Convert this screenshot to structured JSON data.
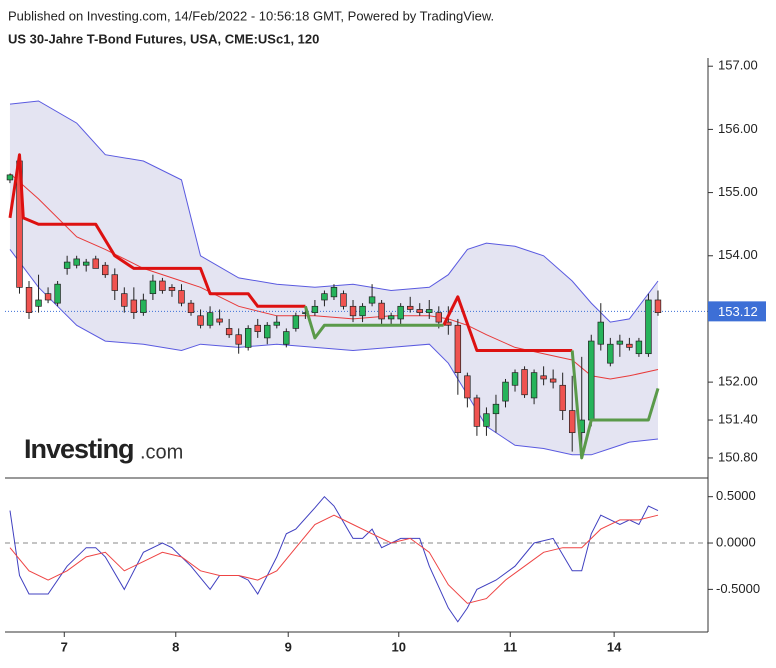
{
  "header": {
    "published": "Published on Investing.com, 14/Feb/2022 - 10:56:18 GMT, Powered by TradingView.",
    "title": "US 30-Jahre T-Bond Futures, USA, CME:USc1, 120"
  },
  "logo": {
    "brand": "Investing",
    "suffix": ".com"
  },
  "chart_data": [
    {
      "type": "candlestick",
      "x": [
        0,
        1,
        2,
        3,
        4,
        5,
        6,
        7,
        8,
        9,
        10,
        11,
        12,
        13,
        14,
        15,
        16,
        17,
        18,
        19,
        20,
        21,
        22,
        23,
        24,
        25,
        26,
        27,
        28,
        29,
        30,
        31,
        32,
        33,
        34,
        35,
        36,
        37,
        38,
        39,
        40,
        41,
        42,
        43,
        44,
        45,
        46,
        47,
        48,
        49,
        50,
        51,
        52,
        53,
        54,
        55,
        56,
        57,
        58,
        59,
        60,
        61,
        62,
        63,
        64,
        65,
        66,
        67,
        68
      ],
      "open": [
        155.2,
        155.5,
        153.5,
        153.2,
        153.4,
        153.25,
        153.8,
        153.85,
        153.85,
        153.95,
        153.85,
        153.7,
        153.4,
        153.3,
        153.1,
        153.4,
        153.6,
        153.5,
        153.45,
        153.25,
        153.05,
        152.9,
        153.0,
        152.85,
        152.75,
        152.55,
        152.9,
        152.7,
        152.9,
        152.6,
        152.85,
        153.1,
        153.1,
        153.3,
        153.35,
        153.4,
        153.2,
        153.05,
        153.25,
        153.25,
        153.0,
        153.0,
        153.2,
        153.15,
        153.1,
        153.1,
        152.95,
        152.9,
        152.1,
        151.75,
        151.3,
        151.5,
        151.7,
        151.95,
        152.2,
        151.75,
        152.1,
        152.05,
        151.95,
        151.55,
        151.2,
        151.4,
        152.6,
        152.3,
        152.6,
        152.6,
        152.45,
        152.45,
        153.3
      ],
      "high": [
        155.3,
        155.6,
        153.6,
        153.7,
        153.5,
        153.6,
        154.0,
        154.0,
        153.95,
        154.0,
        153.9,
        153.8,
        153.5,
        153.5,
        153.4,
        153.7,
        153.65,
        153.55,
        153.55,
        153.3,
        153.15,
        153.2,
        153.15,
        153.0,
        152.85,
        152.9,
        153.0,
        152.95,
        153.05,
        152.85,
        153.1,
        153.2,
        153.3,
        153.45,
        153.55,
        153.45,
        153.3,
        153.25,
        153.55,
        153.3,
        153.1,
        153.25,
        153.35,
        153.25,
        153.3,
        153.2,
        153.2,
        153.0,
        152.15,
        151.8,
        151.6,
        151.8,
        152.05,
        152.2,
        152.25,
        152.2,
        152.25,
        152.2,
        152.15,
        152.1,
        152.4,
        152.75,
        153.25,
        152.7,
        152.75,
        152.7,
        152.7,
        153.4,
        153.45
      ],
      "low": [
        155.15,
        153.4,
        153.0,
        153.1,
        153.25,
        153.2,
        153.7,
        153.8,
        153.75,
        153.8,
        153.65,
        153.3,
        153.1,
        153.0,
        153.05,
        153.3,
        153.4,
        153.35,
        153.2,
        153.05,
        152.85,
        152.85,
        152.9,
        152.7,
        152.45,
        152.5,
        152.7,
        152.6,
        152.85,
        152.55,
        152.8,
        153.0,
        153.05,
        153.2,
        153.3,
        153.15,
        152.95,
        152.95,
        153.2,
        152.9,
        152.9,
        152.9,
        153.1,
        153.05,
        153.0,
        152.85,
        152.75,
        151.8,
        151.6,
        151.15,
        151.15,
        151.2,
        151.6,
        151.85,
        151.75,
        151.65,
        151.95,
        151.9,
        151.4,
        150.9,
        150.9,
        151.3,
        152.5,
        152.25,
        152.4,
        152.5,
        152.4,
        152.4,
        153.05
      ],
      "close": [
        155.28,
        153.5,
        153.1,
        153.3,
        153.3,
        153.55,
        153.9,
        153.95,
        153.9,
        153.8,
        153.7,
        153.45,
        153.2,
        153.1,
        153.3,
        153.6,
        153.45,
        153.45,
        153.25,
        153.1,
        152.9,
        153.1,
        152.95,
        152.75,
        152.6,
        152.85,
        152.8,
        152.9,
        152.95,
        152.8,
        153.05,
        153.1,
        153.2,
        153.4,
        153.5,
        153.2,
        153.05,
        153.2,
        153.35,
        153.0,
        153.05,
        153.2,
        153.15,
        153.1,
        153.15,
        152.95,
        152.9,
        152.15,
        151.75,
        151.3,
        151.5,
        151.65,
        152.0,
        152.15,
        151.8,
        152.15,
        152.05,
        152.0,
        151.55,
        151.2,
        151.4,
        152.65,
        152.95,
        152.6,
        152.65,
        152.55,
        152.65,
        153.3,
        153.1
      ],
      "up_color": "#26b35a",
      "down_color": "#ef5350",
      "band_fill": "#e4e4f2",
      "band_color": "#5a5ae0",
      "upper_band": {
        "x": [
          0,
          3,
          7,
          10,
          14,
          18,
          20,
          24,
          28,
          32,
          36,
          40,
          44,
          46,
          48,
          50,
          53,
          56,
          59,
          61,
          63,
          65,
          68
        ],
        "values": [
          156.4,
          156.45,
          156.1,
          155.6,
          155.5,
          155.2,
          154.0,
          153.65,
          153.55,
          153.5,
          153.55,
          153.45,
          153.5,
          153.7,
          154.1,
          154.2,
          154.15,
          154.0,
          153.6,
          153.25,
          152.95,
          153.0,
          153.6
        ]
      },
      "lower_band": {
        "x": [
          0,
          3,
          7,
          10,
          14,
          18,
          20,
          24,
          28,
          32,
          36,
          40,
          44,
          46,
          48,
          50,
          53,
          56,
          59,
          61,
          63,
          65,
          68
        ],
        "values": [
          154.1,
          153.5,
          152.9,
          152.65,
          152.6,
          152.5,
          152.6,
          152.55,
          152.6,
          152.55,
          152.5,
          152.55,
          152.6,
          152.3,
          151.8,
          151.3,
          151.0,
          150.95,
          150.85,
          150.85,
          150.95,
          151.05,
          151.1
        ]
      },
      "middle_band": {
        "color": "#e83a3a",
        "x": [
          0,
          3,
          7,
          10,
          14,
          18,
          20,
          24,
          28,
          32,
          36,
          40,
          44,
          46,
          48,
          50,
          53,
          56,
          59,
          61,
          63,
          65,
          68
        ],
        "values": [
          155.3,
          154.9,
          154.3,
          154.1,
          153.8,
          153.6,
          153.5,
          153.2,
          153.05,
          153.05,
          153.0,
          153.05,
          153.05,
          153.0,
          152.9,
          152.75,
          152.55,
          152.45,
          152.35,
          152.1,
          152.05,
          152.1,
          152.2
        ]
      },
      "trend_lines": [
        {
          "color": "#dd1111",
          "x": [
            0,
            1,
            1.4,
            3,
            9,
            11,
            13,
            20,
            21,
            25,
            26,
            31,
            31,
            45.5,
            47,
            49,
            59
          ],
          "values": [
            154.6,
            155.6,
            154.6,
            154.5,
            154.5,
            154.0,
            153.8,
            153.8,
            153.4,
            153.4,
            153.2,
            153.2,
            null,
            152.9,
            153.35,
            152.5,
            152.5
          ]
        },
        {
          "color": "#5a9a4a",
          "x": [
            31,
            32,
            33,
            45.5,
            45.5,
            59,
            60,
            61,
            67,
            68
          ],
          "values": [
            153.2,
            152.7,
            152.9,
            152.9,
            null,
            152.5,
            150.8,
            151.4,
            151.4,
            151.9
          ]
        }
      ],
      "last_price": 153.12,
      "last_price_color": "#3d6fd6",
      "xlim": [
        -0.52,
        73.25
      ],
      "ylim": [
        150.53,
        157.13
      ],
      "yticks": [
        {
          "value": 157,
          "label": "157.00"
        },
        {
          "value": 156,
          "label": "156.00"
        },
        {
          "value": 155,
          "label": "155.00"
        },
        {
          "value": 154,
          "label": "154.00"
        },
        {
          "value": 152,
          "label": "152.00"
        },
        {
          "value": 151.4,
          "label": "151.40"
        },
        {
          "value": 150.8,
          "label": "150.80"
        }
      ]
    },
    {
      "type": "line",
      "series": [
        {
          "color": "#4040c0",
          "x": [
            0,
            1,
            2,
            4,
            6,
            8,
            9,
            10,
            12,
            14,
            16,
            17,
            19,
            21,
            22,
            24,
            25,
            26,
            27,
            28,
            29,
            30,
            32,
            33,
            34,
            36,
            37,
            38,
            39,
            41,
            43,
            44,
            46,
            47,
            48,
            49,
            51,
            53,
            55,
            57,
            59,
            60,
            61,
            62,
            64,
            65,
            66,
            67,
            68
          ],
          "values": [
            0.35,
            -0.35,
            -0.55,
            -0.55,
            -0.25,
            -0.05,
            -0.05,
            -0.15,
            -0.5,
            -0.1,
            0.0,
            -0.05,
            -0.25,
            -0.5,
            -0.35,
            -0.35,
            -0.4,
            -0.55,
            -0.35,
            -0.15,
            0.1,
            0.15,
            0.38,
            0.5,
            0.4,
            0.05,
            0.05,
            0.15,
            -0.05,
            0.05,
            0.05,
            -0.25,
            -0.7,
            -0.85,
            -0.7,
            -0.5,
            -0.4,
            -0.25,
            0.0,
            0.05,
            -0.3,
            -0.3,
            0.1,
            0.3,
            0.2,
            0.25,
            0.2,
            0.4,
            0.35
          ]
        },
        {
          "color": "#ee4444",
          "x": [
            0,
            2,
            4,
            6,
            8,
            10,
            12,
            14,
            16,
            18,
            20,
            22,
            24,
            26,
            28,
            30,
            32,
            34,
            36,
            38,
            40,
            42,
            44,
            46,
            48,
            50,
            52,
            54,
            56,
            58,
            60,
            62,
            64,
            66,
            68
          ],
          "values": [
            -0.05,
            -0.3,
            -0.4,
            -0.3,
            -0.15,
            -0.1,
            -0.3,
            -0.2,
            -0.1,
            -0.15,
            -0.3,
            -0.35,
            -0.35,
            -0.4,
            -0.3,
            -0.05,
            0.2,
            0.3,
            0.2,
            0.1,
            0.0,
            0.05,
            -0.1,
            -0.45,
            -0.65,
            -0.6,
            -0.4,
            -0.25,
            -0.1,
            -0.05,
            -0.05,
            0.15,
            0.25,
            0.25,
            0.3
          ]
        }
      ],
      "zero_line": 0,
      "xlim": [
        -0.52,
        73.25
      ],
      "ylim": [
        -0.96,
        0.68
      ],
      "yticks": [
        {
          "value": 0.5,
          "label": "0.5000"
        },
        {
          "value": 0,
          "label": "0.0000"
        },
        {
          "value": -0.5,
          "label": "-0.5000"
        }
      ],
      "xticks": [
        {
          "value": 5.7,
          "label": "7"
        },
        {
          "value": 17.4,
          "label": "8"
        },
        {
          "value": 29.2,
          "label": "9"
        },
        {
          "value": 40.8,
          "label": "10"
        },
        {
          "value": 52.5,
          "label": "11"
        },
        {
          "value": 63.4,
          "label": "14"
        }
      ]
    }
  ]
}
